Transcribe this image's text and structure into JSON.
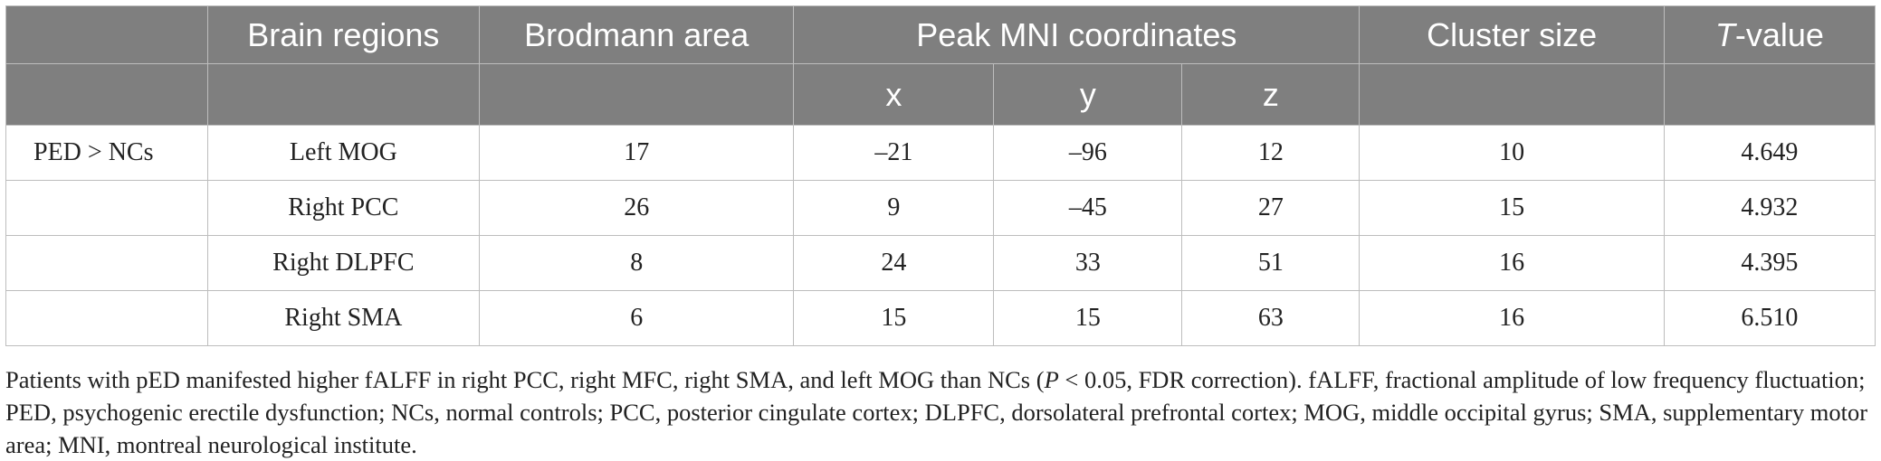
{
  "header": {
    "group": "",
    "brain_regions": "Brain regions",
    "brodmann_area": "Brodmann area",
    "peak_mni": "Peak MNI coordinates",
    "cluster_size": "Cluster size",
    "t_value_italic": "T",
    "t_value_suffix": "-value",
    "x": "x",
    "y": "y",
    "z": "z"
  },
  "rows": [
    {
      "group": "PED > NCs",
      "region": "Left MOG",
      "ba": "17",
      "x": "–21",
      "y": "–96",
      "z": "12",
      "cluster": "10",
      "t": "4.649"
    },
    {
      "group": "",
      "region": "Right PCC",
      "ba": "26",
      "x": "9",
      "y": "–45",
      "z": "27",
      "cluster": "15",
      "t": "4.932"
    },
    {
      "group": "",
      "region": "Right DLPFC",
      "ba": "8",
      "x": "24",
      "y": "33",
      "z": "51",
      "cluster": "16",
      "t": "4.395"
    },
    {
      "group": "",
      "region": "Right SMA",
      "ba": "6",
      "x": "15",
      "y": "15",
      "z": "63",
      "cluster": "16",
      "t": "6.510"
    }
  ],
  "footnote": {
    "part1": "Patients with pED manifested higher fALFF in right PCC, right MFC, right SMA, and left MOG than NCs (",
    "p_italic": "P",
    "part2": " < 0.05, FDR correction). fALFF, fractional amplitude of low frequency fluctuation; PED, psychogenic erectile dysfunction; NCs, normal controls; PCC, posterior cingulate cortex; DLPFC, dorsolateral prefrontal cortex; MOG, middle occipital gyrus; SMA, supplementary motor area; MNI, montreal neurological institute."
  }
}
